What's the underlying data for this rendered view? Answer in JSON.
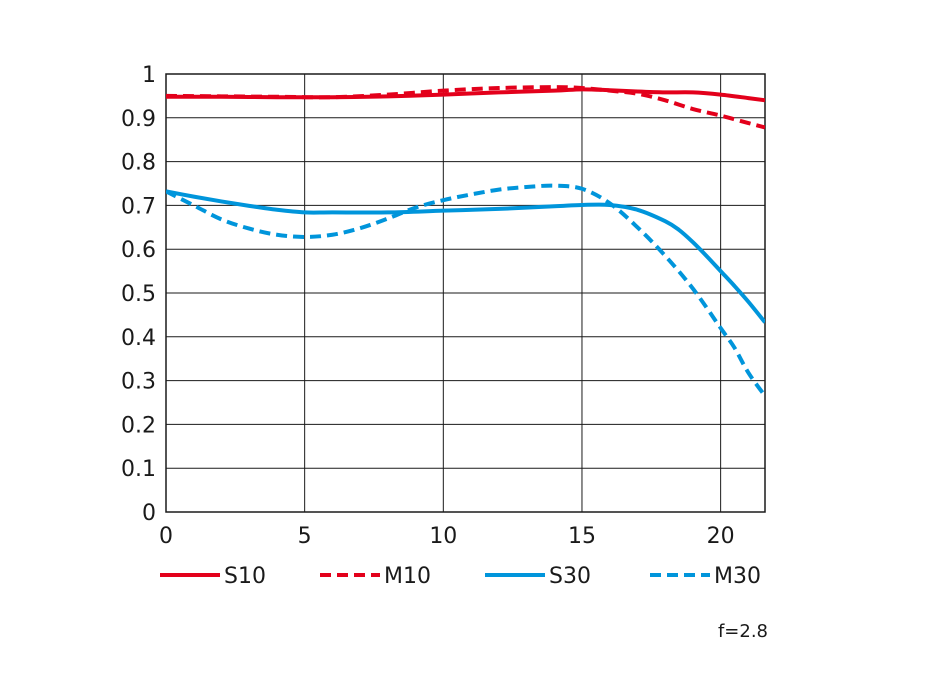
{
  "chart_data": {
    "type": "line",
    "title": "",
    "xlabel": "",
    "ylabel": "",
    "xlim": [
      0,
      21.6
    ],
    "ylim": [
      0,
      1
    ],
    "x_ticks": [
      0,
      5,
      10,
      15,
      20
    ],
    "x_tick_labels": [
      "0",
      "5",
      "10",
      "15",
      "20"
    ],
    "y_ticks": [
      0,
      0.1,
      0.2,
      0.3,
      0.4,
      0.5,
      0.6,
      0.7,
      0.8,
      0.9,
      1
    ],
    "y_tick_labels": [
      "0",
      "0.1",
      "0.2",
      "0.3",
      "0.4",
      "0.5",
      "0.6",
      "0.7",
      "0.8",
      "0.9",
      "1"
    ],
    "grid": true,
    "legend_position": "bottom",
    "annotation": "f=2.8",
    "series": [
      {
        "name": "S10",
        "color": "#e3001b",
        "dash": "solid",
        "x": [
          0,
          2,
          4,
          6,
          8,
          10,
          12,
          14,
          15,
          16,
          17,
          18,
          19,
          20,
          21,
          21.6
        ],
        "y": [
          0.948,
          0.948,
          0.947,
          0.947,
          0.949,
          0.953,
          0.958,
          0.962,
          0.965,
          0.963,
          0.96,
          0.958,
          0.958,
          0.953,
          0.945,
          0.94
        ]
      },
      {
        "name": "M10",
        "color": "#e3001b",
        "dash": "dashed",
        "x": [
          0,
          2,
          4,
          6,
          8,
          10,
          12,
          14,
          15,
          16,
          17,
          18,
          19,
          20,
          21,
          21.6
        ],
        "y": [
          0.95,
          0.949,
          0.948,
          0.947,
          0.953,
          0.962,
          0.968,
          0.97,
          0.968,
          0.962,
          0.955,
          0.94,
          0.92,
          0.905,
          0.888,
          0.878
        ]
      },
      {
        "name": "S30",
        "color": "#0095db",
        "dash": "solid",
        "x": [
          0,
          1,
          2,
          3,
          4,
          5,
          6,
          8,
          10,
          12,
          14,
          15,
          16,
          17,
          18,
          18.5,
          19,
          19.5,
          20,
          20.5,
          21,
          21.6
        ],
        "y": [
          0.732,
          0.72,
          0.709,
          0.699,
          0.69,
          0.684,
          0.684,
          0.684,
          0.688,
          0.692,
          0.698,
          0.701,
          0.701,
          0.69,
          0.664,
          0.644,
          0.616,
          0.584,
          0.55,
          0.516,
          0.48,
          0.433
        ]
      },
      {
        "name": "M30",
        "color": "#0095db",
        "dash": "dashed",
        "x": [
          0,
          1,
          2,
          3,
          4,
          5,
          6,
          7,
          8,
          9,
          10,
          11,
          12,
          13,
          14,
          15,
          16,
          17,
          18,
          19,
          20,
          20.5,
          21,
          21.6
        ],
        "y": [
          0.732,
          0.7,
          0.668,
          0.647,
          0.633,
          0.628,
          0.633,
          0.648,
          0.67,
          0.695,
          0.712,
          0.725,
          0.736,
          0.742,
          0.745,
          0.738,
          0.705,
          0.65,
          0.585,
          0.51,
          0.42,
          0.375,
          0.318,
          0.265
        ]
      }
    ]
  }
}
